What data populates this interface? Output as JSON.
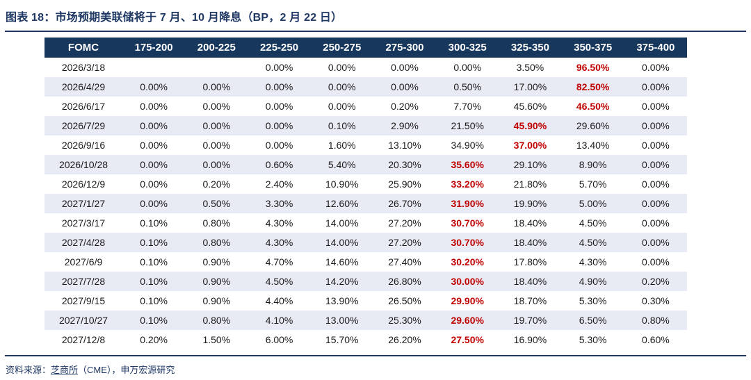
{
  "title": "图表 18：市场预期美联储将于 7 月、10 月降息（BP，2 月 22 日）",
  "colors": {
    "navy": "#1F3864",
    "header_bg": "#17375D",
    "stripe_bg": "#E9EBF4",
    "highlight_red": "#C00000"
  },
  "chart_data": {
    "type": "table",
    "title": "图表 18：市场预期美联储将于 7 月、10 月降息（BP，2 月 22 日）",
    "headers": [
      "FOMC",
      "175-200",
      "200-225",
      "225-250",
      "250-275",
      "275-300",
      "300-325",
      "325-350",
      "350-375",
      "375-400"
    ],
    "rows": [
      {
        "date": "2026/3/18",
        "values": [
          "",
          "",
          "0.00%",
          "0.00%",
          "0.00%",
          "0.00%",
          "3.50%",
          "96.50%",
          "0.00%"
        ],
        "highlight_index": 7
      },
      {
        "date": "2026/4/29",
        "values": [
          "0.00%",
          "0.00%",
          "0.00%",
          "0.00%",
          "0.00%",
          "0.50%",
          "17.00%",
          "82.50%",
          "0.00%"
        ],
        "highlight_index": 7
      },
      {
        "date": "2026/6/17",
        "values": [
          "0.00%",
          "0.00%",
          "0.00%",
          "0.00%",
          "0.20%",
          "7.70%",
          "45.60%",
          "46.50%",
          "0.00%"
        ],
        "highlight_index": 7
      },
      {
        "date": "2026/7/29",
        "values": [
          "0.00%",
          "0.00%",
          "0.00%",
          "0.10%",
          "2.90%",
          "21.50%",
          "45.90%",
          "29.60%",
          "0.00%"
        ],
        "highlight_index": 6
      },
      {
        "date": "2026/9/16",
        "values": [
          "0.00%",
          "0.00%",
          "0.00%",
          "1.60%",
          "13.10%",
          "34.90%",
          "37.00%",
          "13.40%",
          "0.00%"
        ],
        "highlight_index": 6
      },
      {
        "date": "2026/10/28",
        "values": [
          "0.00%",
          "0.00%",
          "0.60%",
          "5.40%",
          "20.30%",
          "35.60%",
          "29.10%",
          "8.90%",
          "0.00%"
        ],
        "highlight_index": 5
      },
      {
        "date": "2026/12/9",
        "values": [
          "0.00%",
          "0.20%",
          "2.40%",
          "10.90%",
          "25.90%",
          "33.20%",
          "21.80%",
          "5.70%",
          "0.00%"
        ],
        "highlight_index": 5
      },
      {
        "date": "2027/1/27",
        "values": [
          "0.00%",
          "0.50%",
          "3.30%",
          "12.60%",
          "26.70%",
          "31.90%",
          "19.90%",
          "5.00%",
          "0.00%"
        ],
        "highlight_index": 5
      },
      {
        "date": "2027/3/17",
        "values": [
          "0.10%",
          "0.80%",
          "4.30%",
          "14.00%",
          "27.20%",
          "30.70%",
          "18.40%",
          "4.50%",
          "0.00%"
        ],
        "highlight_index": 5
      },
      {
        "date": "2027/4/28",
        "values": [
          "0.10%",
          "0.80%",
          "4.30%",
          "14.00%",
          "27.20%",
          "30.70%",
          "18.40%",
          "4.50%",
          "0.00%"
        ],
        "highlight_index": 5
      },
      {
        "date": "2027/6/9",
        "values": [
          "0.10%",
          "0.90%",
          "4.70%",
          "14.60%",
          "27.40%",
          "30.20%",
          "17.80%",
          "4.30%",
          "0.00%"
        ],
        "highlight_index": 5
      },
      {
        "date": "2027/7/28",
        "values": [
          "0.10%",
          "0.90%",
          "4.50%",
          "14.20%",
          "26.80%",
          "30.00%",
          "18.40%",
          "4.90%",
          "0.20%"
        ],
        "highlight_index": 5
      },
      {
        "date": "2027/9/15",
        "values": [
          "0.10%",
          "0.90%",
          "4.40%",
          "13.90%",
          "26.50%",
          "29.90%",
          "18.70%",
          "5.30%",
          "0.30%"
        ],
        "highlight_index": 5
      },
      {
        "date": "2027/10/27",
        "values": [
          "0.10%",
          "0.80%",
          "4.10%",
          "13.00%",
          "25.30%",
          "29.60%",
          "19.70%",
          "6.50%",
          "0.80%"
        ],
        "highlight_index": 5
      },
      {
        "date": "2027/12/8",
        "values": [
          "0.20%",
          "1.50%",
          "6.00%",
          "15.70%",
          "26.20%",
          "27.50%",
          "16.90%",
          "5.30%",
          "0.60%"
        ],
        "highlight_index": 5
      }
    ]
  },
  "footer": {
    "prefix": "资料来源：",
    "link_text": "芝商所",
    "suffix": "（CME），申万宏源研究"
  }
}
